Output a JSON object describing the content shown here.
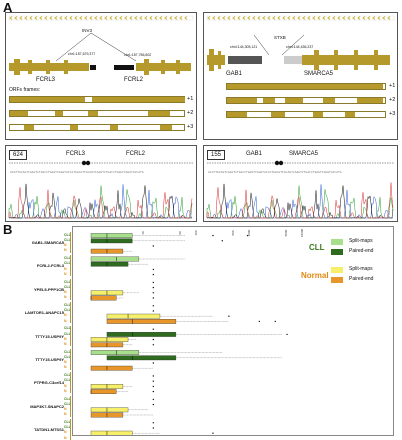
{
  "panel_a": {
    "letter": "A",
    "left": {
      "sv_label": "INV3",
      "coord1": "chr1:157,679,377",
      "coord2": "chr1:157,756,602",
      "gene_left": "FCRL3",
      "gene_right": "FCRL2",
      "orf_title": "ORFs frames:",
      "frames": [
        "+1",
        "+2",
        "+3"
      ],
      "chrom_box": "624",
      "chrom_gene_left": "FCRL3",
      "chrom_gene_right": "FCRL2"
    },
    "right": {
      "sv_label": "STXB",
      "coord1": "chr4:144,305,121",
      "coord2": "chr4:144,436,237",
      "gene_left": "GAB1",
      "gene_right": "SMARCA5",
      "frames": [
        "+1",
        "+2",
        "+3"
      ],
      "chrom_box": "155",
      "chrom_gene_left": "GAB1",
      "chrom_gene_right": "SMARCA5"
    }
  },
  "panel_b": {
    "letter": "B",
    "legend": {
      "cll_title": "CLL",
      "normal_title": "Normal",
      "entries": [
        "Split-maps",
        "Paired-end",
        "Split-maps",
        "Paired-end"
      ]
    },
    "group_labels": {
      "cll": "CLL",
      "normal": "N"
    },
    "axis_ticks": [
      "10",
      "50",
      "100",
      "500",
      "1000",
      "5000",
      "10000"
    ],
    "colors": {
      "cll_split": "#a8df8c",
      "cll_paired": "#2e6b1e",
      "normal_split": "#f5ef6a",
      "normal_paired": "#e8962a",
      "gene_bar": "#b59a2b"
    },
    "fusions": [
      "GAB1-SMARCA5",
      "FCRL2-FCRL3",
      "YPEL5-PPP1CB",
      "LAMTOR1-ANAPC15",
      "TTTY15-USP9Y",
      "TTTY15-USP9Y",
      "PTPRG-C3orf14",
      "MAP3K7-SNAPC2",
      "TATDN1-MTSS1"
    ]
  },
  "chart_data": {
    "type": "boxplot",
    "categories": [
      "GAB1-SMARCA5",
      "FCRL2-FCRL3",
      "YPEL5-PPP1CB",
      "LAMTOR1-ANAPC15",
      "TTTY15-USP9Y",
      "TTTY15-USP9Y",
      "PTPRG-C3orf14",
      "MAP3K7-SNAPC2",
      "TATDN1-MTSS1"
    ],
    "series": [
      {
        "name": "CLL Split-maps"
      },
      {
        "name": "CLL Paired-end"
      },
      {
        "name": "Normal Split-maps"
      },
      {
        "name": "Normal Paired-end"
      }
    ],
    "boxes": [
      {
        "fusion": 0,
        "series": 0,
        "q1": 1,
        "med": 2,
        "q3": 6,
        "wmax": 60,
        "out": [
          200,
          900
        ]
      },
      {
        "fusion": 0,
        "series": 1,
        "q1": 1,
        "med": 2,
        "q3": 6,
        "wmax": 60,
        "out": [
          300
        ]
      },
      {
        "fusion": 0,
        "series": 2,
        "q1": 0,
        "med": 0,
        "q3": 0,
        "wmax": 0,
        "out": [
          15
        ]
      },
      {
        "fusion": 0,
        "series": 3,
        "q1": 1,
        "med": 2,
        "q3": 4,
        "wmax": 6,
        "out": []
      },
      {
        "fusion": 1,
        "series": 0,
        "q1": 1,
        "med": 3,
        "q3": 8,
        "wmax": 60,
        "out": []
      },
      {
        "fusion": 1,
        "series": 1,
        "q1": 1,
        "med": 2,
        "q3": 5,
        "wmax": 12,
        "out": []
      },
      {
        "fusion": 1,
        "series": 2,
        "q1": 0,
        "med": 0,
        "q3": 0,
        "wmax": 0,
        "out": [
          15
        ]
      },
      {
        "fusion": 1,
        "series": 3,
        "q1": 0,
        "med": 0,
        "q3": 0,
        "wmax": 0,
        "out": [
          15
        ]
      },
      {
        "fusion": 2,
        "series": 0,
        "q1": 0,
        "med": 0,
        "q3": 0,
        "wmax": 0,
        "out": [
          15
        ]
      },
      {
        "fusion": 2,
        "series": 1,
        "q1": 0,
        "med": 0,
        "q3": 0,
        "wmax": 0,
        "out": [
          15
        ]
      },
      {
        "fusion": 2,
        "series": 2,
        "q1": 1,
        "med": 2,
        "q3": 4,
        "wmax": 8,
        "out": [
          15
        ]
      },
      {
        "fusion": 2,
        "series": 3,
        "q1": 1,
        "med": 1,
        "q3": 3,
        "wmax": 4,
        "out": [
          15
        ]
      },
      {
        "fusion": 3,
        "series": 0,
        "q1": 0,
        "med": 0,
        "q3": 0,
        "wmax": 0,
        "out": [
          15
        ]
      },
      {
        "fusion": 3,
        "series": 1,
        "q1": 0,
        "med": 0,
        "q3": 0,
        "wmax": 0,
        "out": [
          15
        ]
      },
      {
        "fusion": 3,
        "series": 2,
        "q1": 2,
        "med": 5,
        "q3": 20,
        "wmax": 200,
        "out": [
          400
        ]
      },
      {
        "fusion": 3,
        "series": 3,
        "q1": 2,
        "med": 6,
        "q3": 40,
        "wmax": 400,
        "out": [
          1500,
          3000
        ]
      },
      {
        "fusion": 4,
        "series": 0,
        "q1": 0,
        "med": 0,
        "q3": 0,
        "wmax": 0,
        "out": [
          15
        ]
      },
      {
        "fusion": 4,
        "series": 1,
        "q1": 2,
        "med": 6,
        "q3": 40,
        "wmax": 4000,
        "out": [
          5000
        ]
      },
      {
        "fusion": 4,
        "series": 2,
        "q1": 1,
        "med": 2,
        "q3": 5,
        "wmax": 7,
        "out": [
          15
        ]
      },
      {
        "fusion": 4,
        "series": 3,
        "q1": 1,
        "med": 2,
        "q3": 4,
        "wmax": 6,
        "out": [
          15
        ]
      },
      {
        "fusion": 5,
        "series": 0,
        "q1": 1,
        "med": 3,
        "q3": 8,
        "wmax": 300,
        "out": []
      },
      {
        "fusion": 5,
        "series": 1,
        "q1": 2,
        "med": 6,
        "q3": 40,
        "wmax": 4000,
        "out": []
      },
      {
        "fusion": 5,
        "series": 2,
        "q1": 0,
        "med": 0,
        "q3": 0,
        "wmax": 0,
        "out": [
          15
        ]
      },
      {
        "fusion": 5,
        "series": 3,
        "q1": 1,
        "med": 2,
        "q3": 6,
        "wmax": 15,
        "out": []
      },
      {
        "fusion": 6,
        "series": 0,
        "q1": 0,
        "med": 0,
        "q3": 0,
        "wmax": 0,
        "out": [
          15
        ]
      },
      {
        "fusion": 6,
        "series": 1,
        "q1": 0,
        "med": 0,
        "q3": 0,
        "wmax": 0,
        "out": [
          15
        ]
      },
      {
        "fusion": 6,
        "series": 2,
        "q1": 1,
        "med": 2,
        "q3": 4,
        "wmax": 6,
        "out": [
          15
        ]
      },
      {
        "fusion": 6,
        "series": 3,
        "q1": 1,
        "med": 1,
        "q3": 3,
        "wmax": 5,
        "out": [
          15
        ]
      },
      {
        "fusion": 7,
        "series": 0,
        "q1": 0,
        "med": 0,
        "q3": 0,
        "wmax": 0,
        "out": [
          15
        ]
      },
      {
        "fusion": 7,
        "series": 1,
        "q1": 0,
        "med": 0,
        "q3": 0,
        "wmax": 0,
        "out": [
          15
        ]
      },
      {
        "fusion": 7,
        "series": 2,
        "q1": 1,
        "med": 2,
        "q3": 5,
        "wmax": 12,
        "out": []
      },
      {
        "fusion": 7,
        "series": 3,
        "q1": 1,
        "med": 2,
        "q3": 4,
        "wmax": 15,
        "out": []
      },
      {
        "fusion": 8,
        "series": 0,
        "q1": 0,
        "med": 0,
        "q3": 0,
        "wmax": 0,
        "out": [
          15
        ]
      },
      {
        "fusion": 8,
        "series": 1,
        "q1": 0,
        "med": 0,
        "q3": 0,
        "wmax": 0,
        "out": [
          15
        ]
      },
      {
        "fusion": 8,
        "series": 2,
        "q1": 1,
        "med": 2,
        "q3": 6,
        "wmax": 20,
        "out": [
          200
        ]
      },
      {
        "fusion": 8,
        "series": 3,
        "q1": 1,
        "med": 2,
        "q3": 4,
        "wmax": 8,
        "out": []
      }
    ],
    "x_scale": "log",
    "xlim": [
      1,
      10000
    ],
    "grid": false,
    "legend": "top-right"
  }
}
